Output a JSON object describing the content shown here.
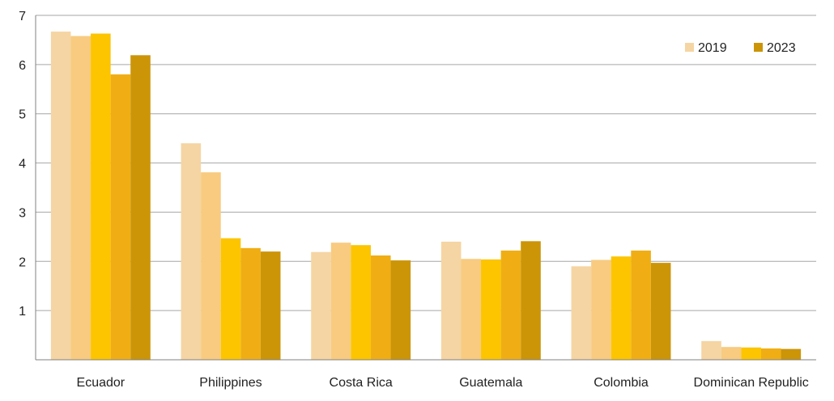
{
  "chart_data": {
    "type": "bar",
    "categories": [
      "Ecuador",
      "Philippines",
      "Costa Rica",
      "Guatemala",
      "Colombia",
      "Dominican Republic"
    ],
    "series": [
      {
        "name": "2019",
        "color": "#F5D5A3",
        "values": [
          6.67,
          4.4,
          2.19,
          2.4,
          1.9,
          0.38
        ]
      },
      {
        "name": "",
        "color": "#F8CB80",
        "values": [
          6.58,
          3.81,
          2.38,
          2.05,
          2.03,
          0.26
        ]
      },
      {
        "name": "",
        "color": "#FCC500",
        "values": [
          6.63,
          2.47,
          2.33,
          2.04,
          2.1,
          0.25
        ]
      },
      {
        "name": "",
        "color": "#F0AE14",
        "values": [
          5.8,
          2.27,
          2.12,
          2.22,
          2.22,
          0.23
        ]
      },
      {
        "name": "2023",
        "color": "#CC9508",
        "values": [
          6.19,
          2.2,
          2.02,
          2.41,
          1.97,
          0.22
        ]
      }
    ],
    "ylim": [
      0,
      7
    ],
    "yticks": [
      1,
      2,
      3,
      4,
      5,
      6,
      7
    ],
    "grid": true,
    "legend": {
      "position": "top-right",
      "entries": [
        {
          "label": "2019",
          "color": "#F5D5A3"
        },
        {
          "label": "2023",
          "color": "#CC9508"
        }
      ]
    },
    "title": "",
    "xlabel": "",
    "ylabel": ""
  }
}
